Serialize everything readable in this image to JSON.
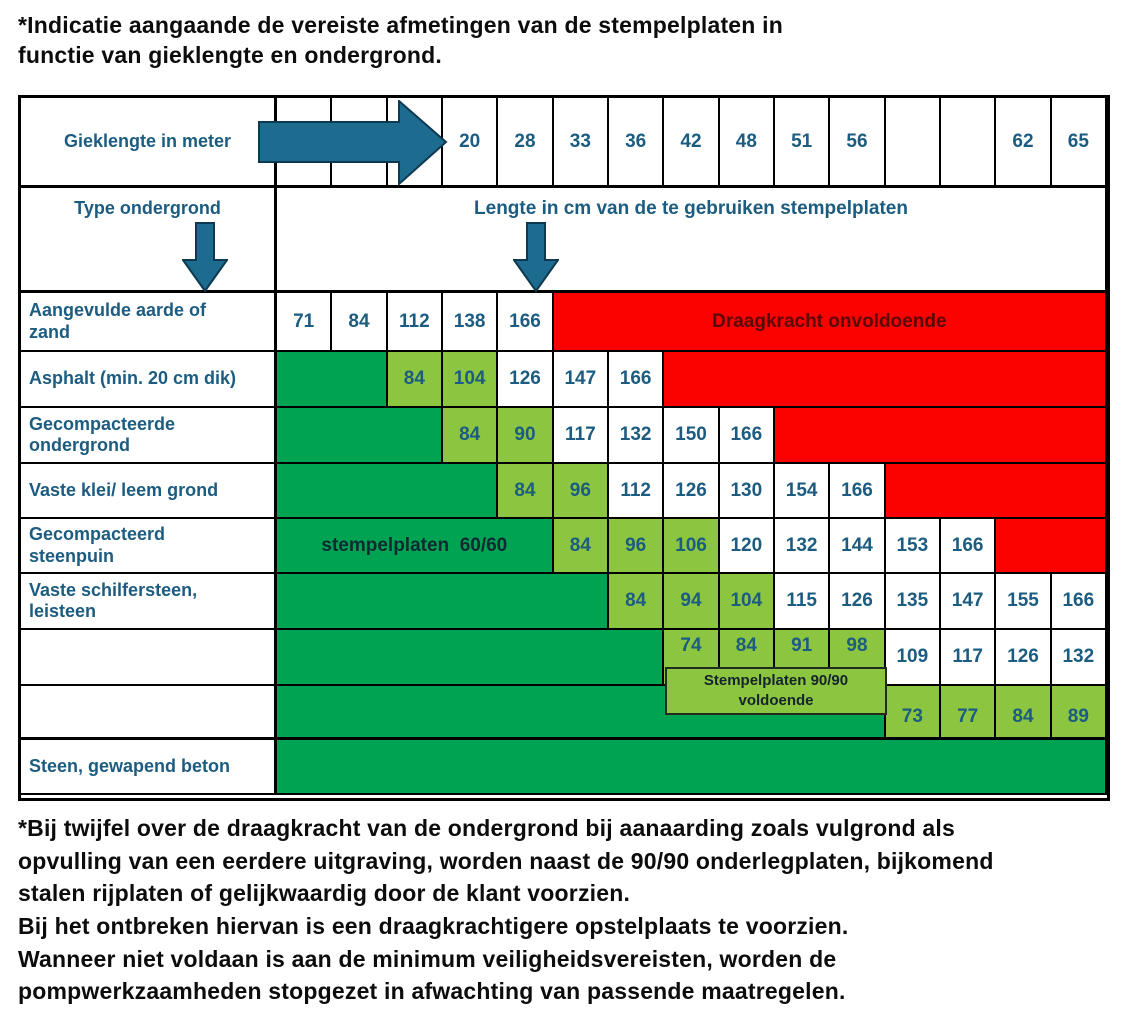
{
  "title": "*Indicatie aangaande de vereiste afmetingen van de stempelplaten in\nfunctie van gieklengte en ondergrond.",
  "footnote": "*Bij twijfel over de draagkracht van de ondergrond bij aanaarding zoals vulgrond als\nopvulling van een eerdere uitgraving, worden naast de 90/90 onderlegplaten, bijkomend\nstalen rijplaten of gelijkwaardig door de klant voorzien.\nBij het ontbreken hiervan is een draagkrachtigere opstelplaats te voorzien.\nWanneer niet voldaan is aan de minimum veiligheidsvereisten, worden de\npompwerkzaamheden stopgezet in afwachting van passende maatregelen.",
  "colors": {
    "dark_green": "#00a351",
    "light_green": "#8cc640",
    "red": "#fb0100",
    "text_blue": "#1c5c80",
    "arrow_fill": "#1e6b90",
    "arrow_stroke": "#0d3a50",
    "red_label_text": "#5a0808"
  },
  "table": {
    "header1": {
      "label": "Gieklengte in meter",
      "cols": [
        "",
        "",
        "",
        "20",
        "28",
        "33",
        "36",
        "42",
        "48",
        "51",
        "56",
        "",
        "",
        "62",
        "65"
      ]
    },
    "header2": {
      "label": "Type ondergrond",
      "span_label": "Lengte in cm van de te gebruiken stempelplaten"
    },
    "overlay": "Stempelplaten 90/90\nvoldoende",
    "rows": [
      {
        "label": "Aangevulde aarde of\nzand",
        "cells": [
          {
            "t": "71",
            "bg": "w"
          },
          {
            "t": "84",
            "bg": "w"
          },
          {
            "t": "112",
            "bg": "w"
          },
          {
            "t": "138",
            "bg": "w"
          },
          {
            "t": "166",
            "bg": "w"
          },
          {
            "t": "Draagkracht onvoldoende",
            "bg": "r",
            "span": 10,
            "cls": "redlbl"
          }
        ]
      },
      {
        "label": "Asphalt (min. 20 cm dik)",
        "cells": [
          {
            "t": "",
            "bg": "dg",
            "span": 2
          },
          {
            "t": "84",
            "bg": "lg"
          },
          {
            "t": "104",
            "bg": "lg"
          },
          {
            "t": "126",
            "bg": "w"
          },
          {
            "t": "147",
            "bg": "w"
          },
          {
            "t": "166",
            "bg": "w"
          },
          {
            "t": "",
            "bg": "r",
            "span": 8
          }
        ]
      },
      {
        "label": "Gecompacteerde\nondergrond",
        "cells": [
          {
            "t": "",
            "bg": "dg",
            "span": 3
          },
          {
            "t": "84",
            "bg": "lg"
          },
          {
            "t": "90",
            "bg": "lg"
          },
          {
            "t": "117",
            "bg": "w"
          },
          {
            "t": "132",
            "bg": "w"
          },
          {
            "t": "150",
            "bg": "w"
          },
          {
            "t": "166",
            "bg": "w"
          },
          {
            "t": "",
            "bg": "r",
            "span": 6
          }
        ]
      },
      {
        "label": "Vaste klei/ leem grond",
        "cells": [
          {
            "t": "",
            "bg": "dg",
            "span": 4
          },
          {
            "t": "84",
            "bg": "lg"
          },
          {
            "t": "96",
            "bg": "lg"
          },
          {
            "t": "112",
            "bg": "w"
          },
          {
            "t": "126",
            "bg": "w"
          },
          {
            "t": "130",
            "bg": "w"
          },
          {
            "t": "154",
            "bg": "w"
          },
          {
            "t": "166",
            "bg": "w"
          },
          {
            "t": "",
            "bg": "r",
            "span": 4
          }
        ]
      },
      {
        "label": "Gecompacteerd\nsteenpuin",
        "cells": [
          {
            "t": "stempelplaten  60/60",
            "bg": "dg",
            "span": 5,
            "cls": "dglbl"
          },
          {
            "t": "84",
            "bg": "lg"
          },
          {
            "t": "96",
            "bg": "lg"
          },
          {
            "t": "106",
            "bg": "lg"
          },
          {
            "t": "120",
            "bg": "w"
          },
          {
            "t": "132",
            "bg": "w"
          },
          {
            "t": "144",
            "bg": "w"
          },
          {
            "t": "153",
            "bg": "w"
          },
          {
            "t": "166",
            "bg": "w"
          },
          {
            "t": "",
            "bg": "r",
            "span": 2
          }
        ]
      },
      {
        "label": "Vaste schilfersteen,\nleisteen",
        "cells": [
          {
            "t": "",
            "bg": "dg",
            "span": 6
          },
          {
            "t": "84",
            "bg": "lg"
          },
          {
            "t": "94",
            "bg": "lg"
          },
          {
            "t": "104",
            "bg": "lg"
          },
          {
            "t": "115",
            "bg": "w"
          },
          {
            "t": "126",
            "bg": "w"
          },
          {
            "t": "135",
            "bg": "w"
          },
          {
            "t": "147",
            "bg": "w"
          },
          {
            "t": "155",
            "bg": "w"
          },
          {
            "t": "166",
            "bg": "w"
          }
        ]
      },
      {
        "label": "",
        "cells": [
          {
            "t": "",
            "bg": "dg",
            "span": 7
          },
          {
            "t": "74",
            "bg": "lg",
            "cls": "top"
          },
          {
            "t": "84",
            "bg": "lg",
            "cls": "top"
          },
          {
            "t": "91",
            "bg": "lg",
            "cls": "top"
          },
          {
            "t": "98",
            "bg": "lg",
            "cls": "top"
          },
          {
            "t": "109",
            "bg": "w"
          },
          {
            "t": "117",
            "bg": "w"
          },
          {
            "t": "126",
            "bg": "w"
          },
          {
            "t": "132",
            "bg": "w"
          }
        ]
      },
      {
        "label": "",
        "tb": true,
        "cells": [
          {
            "t": "",
            "bg": "dg",
            "span": 11
          },
          {
            "t": "73",
            "bg": "lg",
            "cls": "low"
          },
          {
            "t": "77",
            "bg": "lg",
            "cls": "low"
          },
          {
            "t": "84",
            "bg": "lg",
            "cls": "low"
          },
          {
            "t": "89",
            "bg": "lg",
            "cls": "low"
          }
        ]
      },
      {
        "label": "Steen, gewapend beton",
        "cells": [
          {
            "t": "",
            "bg": "dg",
            "span": 15
          }
        ]
      }
    ]
  }
}
